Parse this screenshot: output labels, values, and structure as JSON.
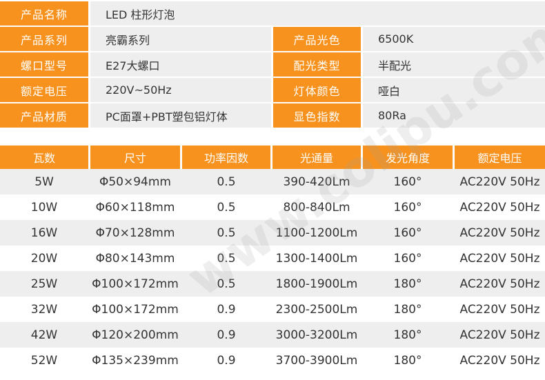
{
  "spec": {
    "rows": [
      {
        "label1": "产品名称",
        "value1": "LED 柱形灯泡"
      },
      {
        "label1": "产品系列",
        "value1": "亮霸系列",
        "label2": "产品光色",
        "value2": "6500K"
      },
      {
        "label1": "螺口型号",
        "value1": "E27大螺口",
        "label2": "配光类型",
        "value2": "半配光"
      },
      {
        "label1": "额定电压",
        "value1": "220V~50Hz",
        "label2": "灯体颜色",
        "value2": "哑白"
      },
      {
        "label1": "产品材质",
        "value1": "PC面罩+PBT塑包铝灯体",
        "label2": "显色指数",
        "value2": "80Ra"
      }
    ]
  },
  "table": {
    "headers": [
      "瓦数",
      "尺寸",
      "功率因数",
      "光通量",
      "发光角度",
      "额定电压"
    ],
    "rows": [
      [
        "5W",
        "Φ50×94mm",
        "0.5",
        "390-420Lm",
        "160°",
        "AC220V 50Hz"
      ],
      [
        "10W",
        "Φ60×118mm",
        "0.5",
        "800-840Lm",
        "160°",
        "AC220V 50Hz"
      ],
      [
        "16W",
        "Φ70×128mm",
        "0.5",
        "1100-1200Lm",
        "160°",
        "AC220V 50Hz"
      ],
      [
        "20W",
        "Φ80×143mm",
        "0.5",
        "1300-1400Lm",
        "160°",
        "AC220V 50Hz"
      ],
      [
        "25W",
        "Φ100×172mm",
        "0.5",
        "1800-1900Lm",
        "180°",
        "AC220V 50Hz"
      ],
      [
        "32W",
        "Φ100×172mm",
        "0.9",
        "2300-2500Lm",
        "180°",
        "AC220V 50Hz"
      ],
      [
        "42W",
        "Φ120×200mm",
        "0.9",
        "3000-3200Lm",
        "180°",
        "AC220V 50Hz"
      ],
      [
        "52W",
        "Φ135×239mm",
        "0.9",
        "3700-3900Lm",
        "180°",
        "AC220V 50Hz"
      ]
    ]
  },
  "watermark": "www.colipu.com",
  "colors": {
    "accent": "#f7921e",
    "shade": "#eeeeee",
    "text": "#333333"
  }
}
